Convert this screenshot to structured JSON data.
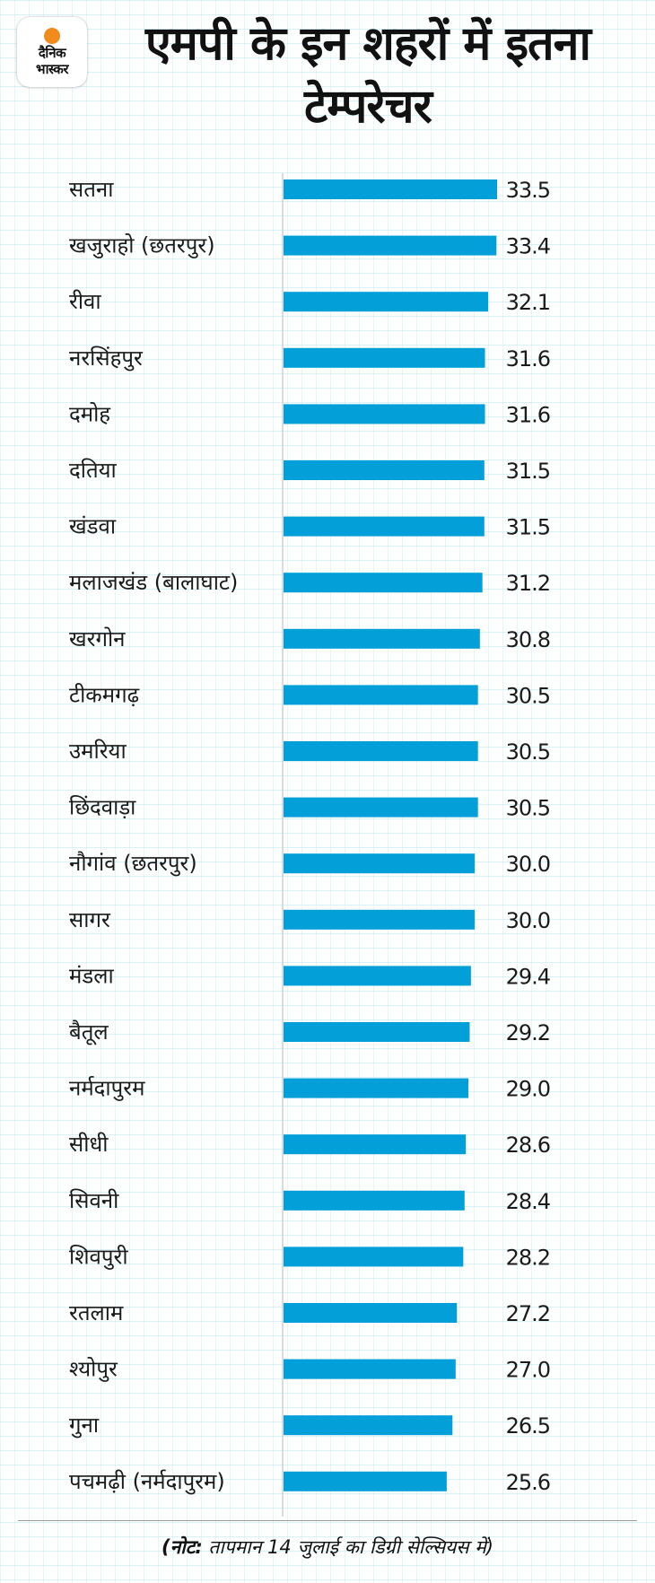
{
  "logo": {
    "line1": "दैनिक",
    "line2": "भास्कर",
    "sun_color": "#f28b1e"
  },
  "title": "एमपी के इन शहरों में इतना टेम्परेचर",
  "note": {
    "prefix": "(नोट:",
    "text": " तापमान 14 जुलाई का डिग्री सेल्सियस में)"
  },
  "chart_data": {
    "type": "bar",
    "orientation": "horizontal",
    "title": "एमपी के इन शहरों में इतना टेम्परेचर",
    "xlabel": "",
    "ylabel": "",
    "xlim": [
      0,
      33.5
    ],
    "grid": false,
    "bar_color": "#039fd9",
    "categories": [
      "सतना",
      "खजुराहो (छतरपुर)",
      "रीवा",
      "नरसिंहपुर",
      "दमोह",
      "दतिया",
      "खंडवा",
      "मलाजखंड (बालाघाट)",
      "खरगोन",
      "टीकमगढ़",
      "उमरिया",
      "छिंदवाड़ा",
      "नौगांव (छतरपुर)",
      "सागर",
      "मंडला",
      "बैतूल",
      "नर्मदापुरम",
      "सीधी",
      "सिवनी",
      "शिवपुरी",
      "रतलाम",
      "श्योपुर",
      "गुना",
      "पचमढ़ी (नर्मदापुरम)"
    ],
    "values": [
      33.5,
      33.4,
      32.1,
      31.6,
      31.6,
      31.5,
      31.5,
      31.2,
      30.8,
      30.5,
      30.5,
      30.5,
      30.0,
      30.0,
      29.4,
      29.2,
      29.0,
      28.6,
      28.4,
      28.2,
      27.2,
      27.0,
      26.5,
      25.6
    ],
    "value_labels": [
      "33.5",
      "33.4",
      "32.1",
      "31.6",
      "31.6",
      "31.5",
      "31.5",
      "31.2",
      "30.8",
      "30.5",
      "30.5",
      "30.5",
      "30.0",
      "30.0",
      "29.4",
      "29.2",
      "29.0",
      "28.6",
      "28.4",
      "28.2",
      "27.2",
      "27.0",
      "26.5",
      "25.6"
    ]
  }
}
